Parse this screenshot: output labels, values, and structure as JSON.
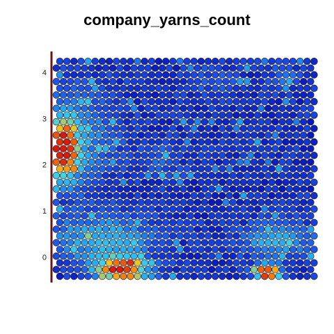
{
  "chart_data": {
    "type": "heatmap",
    "subtype": "hexagonal-som",
    "title": "company_yarns_count",
    "xlabel": "",
    "ylabel": "",
    "yticks": [
      {
        "value": 0,
        "label": "0"
      },
      {
        "value": 1,
        "label": "1"
      },
      {
        "value": 2,
        "label": "2"
      },
      {
        "value": 3,
        "label": "3"
      },
      {
        "value": 4,
        "label": "4"
      }
    ],
    "ylim": [
      -0.55,
      4.45
    ],
    "grid": {
      "columns": 37,
      "rows": 33
    },
    "color_scale": [
      "#0000aa",
      "#1f4fe6",
      "#28a8f0",
      "#3fd2e8",
      "#f6c21c",
      "#ef6a10",
      "#d61a12"
    ],
    "legend_bar_color": "#6b1512",
    "hotspots": [
      {
        "region": "left edge (rows 14-23, cols 0-3)",
        "level": "high",
        "peak": "red/orange"
      },
      {
        "region": "bottom-left (rows 0-3, cols 6-12)",
        "level": "high",
        "peak": "red/orange"
      },
      {
        "region": "bottom-right (rows 0-1, cols 28-31)",
        "level": "high",
        "peak": "red/orange"
      },
      {
        "region": "lower-left band (rows 3-9, cols 0-13)",
        "level": "medium",
        "peak": "cyan"
      },
      {
        "region": "lower-right (rows 4-8, cols 27-34)",
        "level": "medium",
        "peak": "cyan"
      }
    ]
  }
}
